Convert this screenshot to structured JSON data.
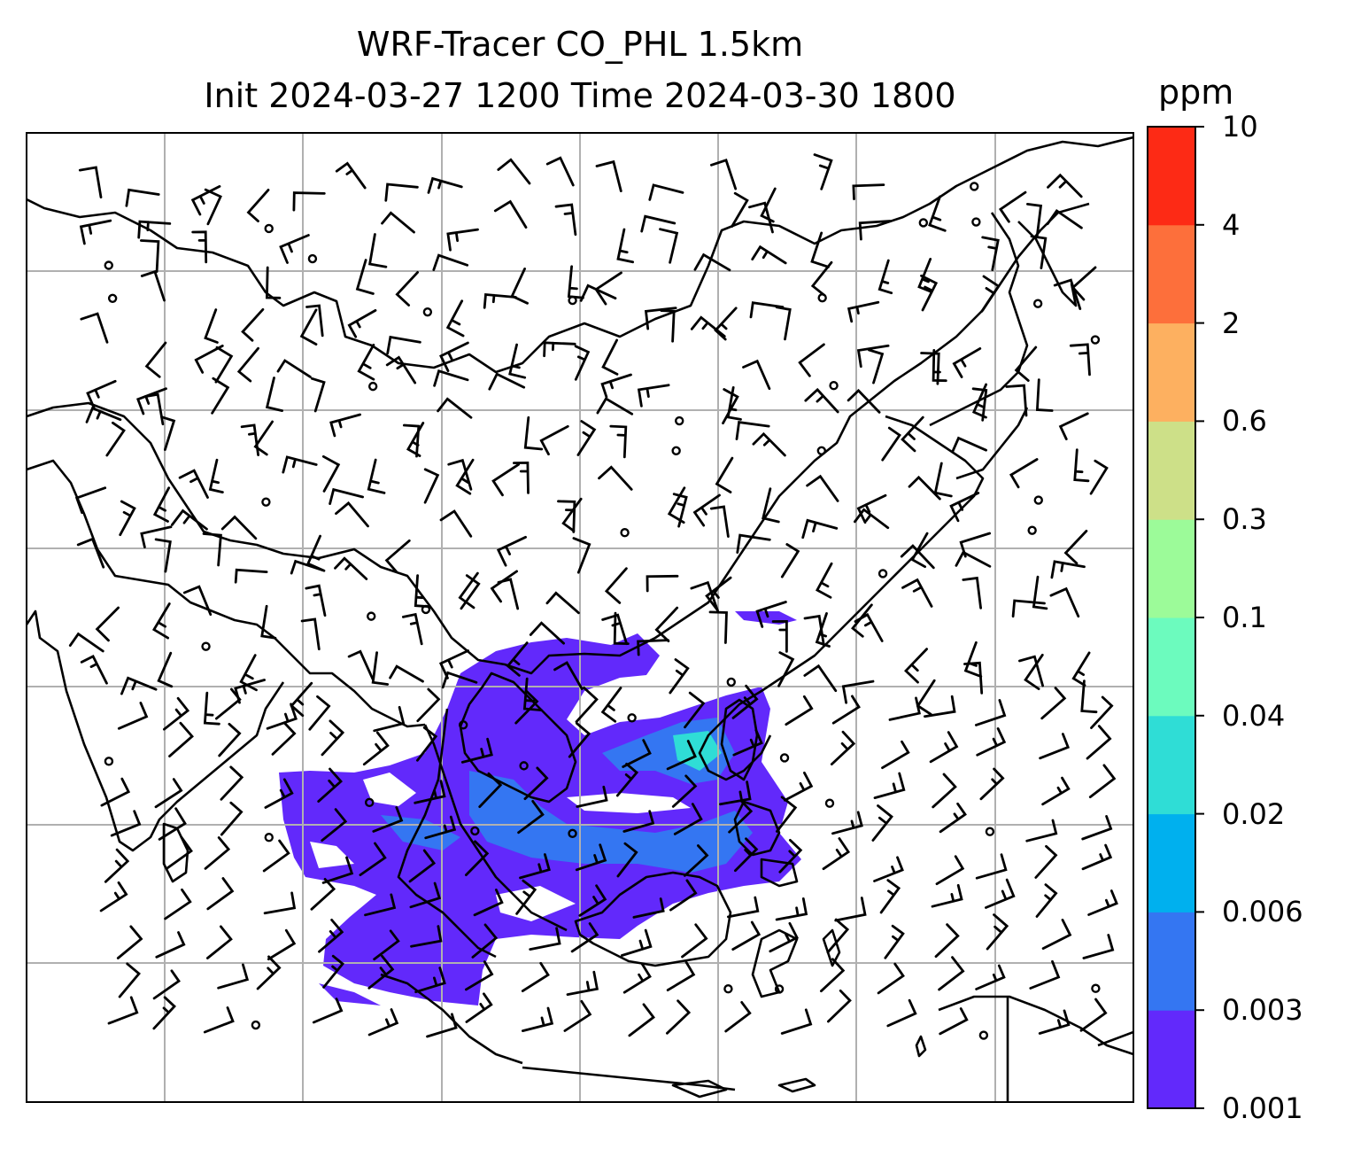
{
  "title": {
    "line1": "WRF-Tracer CO_PHL 1.5km",
    "line2": "Init 2024-03-27 1200 Time 2024-03-30 1800"
  },
  "colorbar": {
    "units": "ppm",
    "levels": [
      "0.001",
      "0.003",
      "0.006",
      "0.02",
      "0.04",
      "0.1",
      "0.3",
      "0.6",
      "2",
      "4",
      "10"
    ],
    "colors": [
      "#6229fb",
      "#3476f2",
      "#00b0ee",
      "#2fddd6",
      "#6cfbbe",
      "#9cfb99",
      "#cde088",
      "#fdb060",
      "#fd6f3b",
      "#fd2a15"
    ]
  },
  "map": {
    "background": "#ffffff",
    "gridline_color": "#b0b0b0",
    "coastline_color": "#000000",
    "tracer_color_low": "#6229fb",
    "tracer_color_mid": "#3476f2",
    "tracer_color_high": "#2fddd6"
  }
}
